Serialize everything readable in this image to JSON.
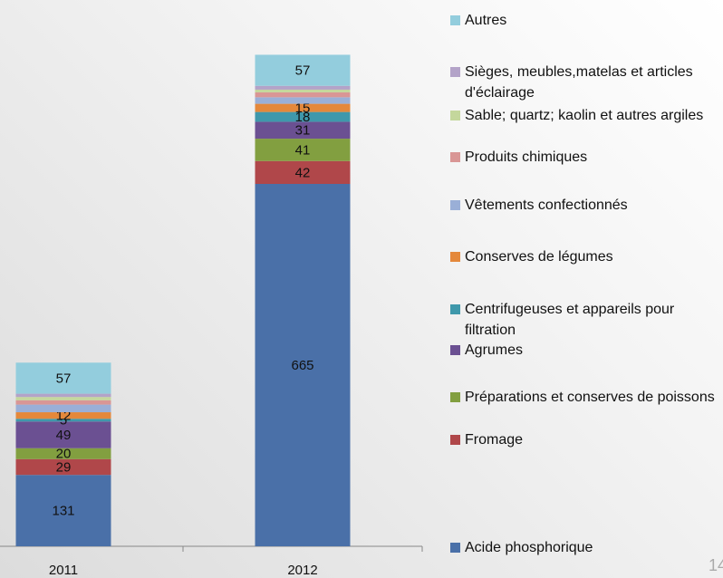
{
  "chart_data": {
    "type": "stacked_bar",
    "categories": [
      "2011",
      "2012"
    ],
    "ylim": [
      0,
      1000
    ],
    "series": [
      {
        "name": "Acide phosphorique",
        "color": "#4a70a8",
        "values": [
          131,
          665
        ]
      },
      {
        "name": "Fromage",
        "color": "#b0474a",
        "values": [
          29,
          42
        ]
      },
      {
        "name": "Préparations et conserves de poissons",
        "color": "#829f40",
        "values": [
          20,
          41
        ]
      },
      {
        "name": "Agrumes",
        "color": "#6b5092",
        "values": [
          49,
          31
        ]
      },
      {
        "name": "Centrifugeuses et appareils pour filtration",
        "color": "#3f98ab",
        "values": [
          5,
          18
        ]
      },
      {
        "name": "Conserves de légumes",
        "color": "#e4883b",
        "values": [
          12,
          15
        ]
      },
      {
        "name": "Vêtements confectionnés",
        "color": "#9aafd7",
        "values": [
          14,
          12
        ],
        "show_labels": false
      },
      {
        "name": "Produits chimiques",
        "color": "#d99695",
        "values": [
          8,
          9
        ],
        "show_labels": false
      },
      {
        "name": "Sable; quartz; kaolin et autres argiles",
        "color": "#c4d79c",
        "values": [
          6,
          5
        ],
        "show_labels": false
      },
      {
        "name": "Sièges, meubles,matelas et articles d'éclairage",
        "color": "#b3a3c8",
        "values": [
          6,
          7
        ],
        "show_labels": false
      },
      {
        "name": "Autres",
        "color": "#93cddd",
        "values": [
          57,
          57
        ]
      }
    ]
  },
  "page_number": "14"
}
